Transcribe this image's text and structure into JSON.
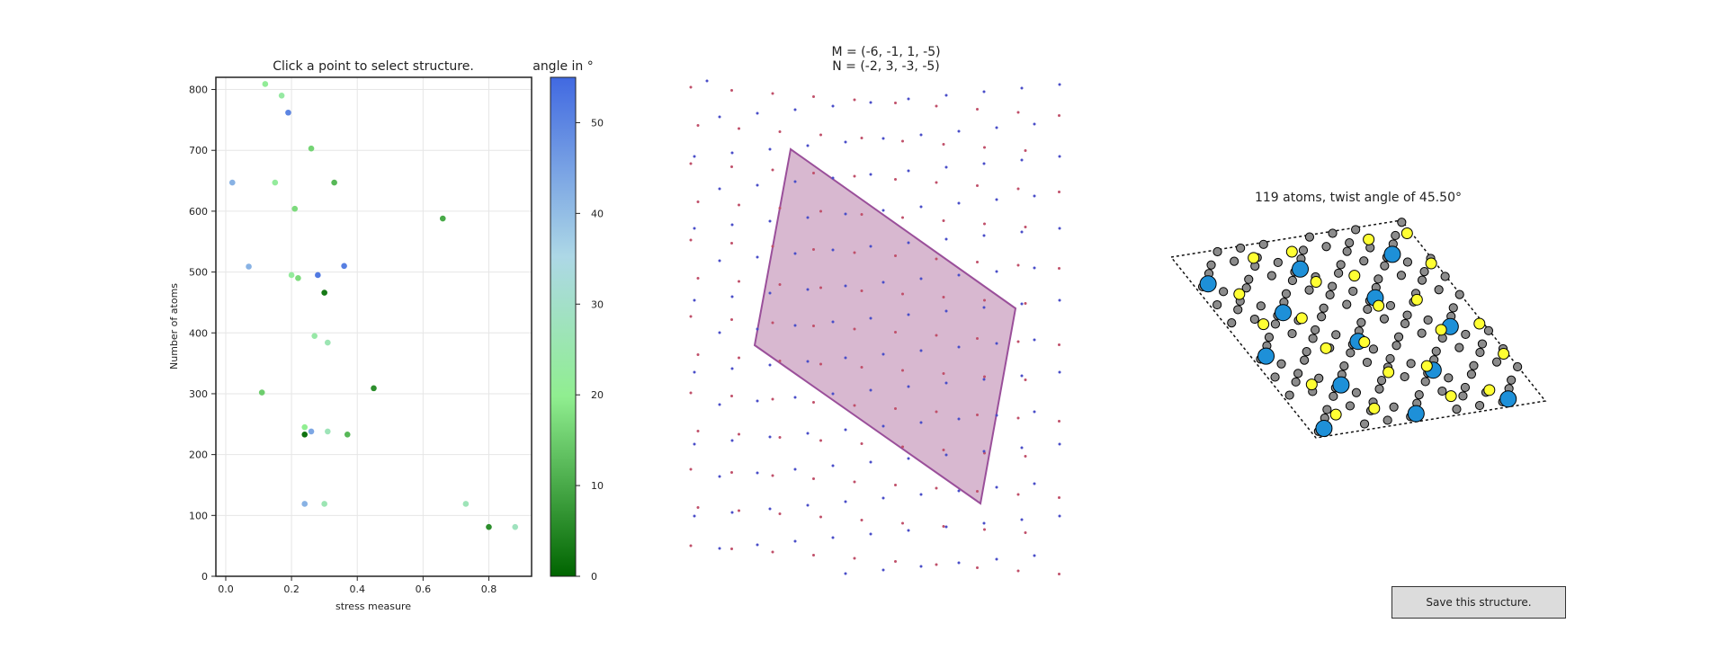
{
  "chart_data": [
    {
      "type": "scatter",
      "title": "Click a point to select structure.",
      "xlabel": "stress measure",
      "ylabel": "Number of atoms",
      "xlim": [
        -0.03,
        0.93
      ],
      "ylim": [
        0,
        820
      ],
      "xticks": [
        "0.0",
        "0.2",
        "0.4",
        "0.6",
        "0.8"
      ],
      "yticks": [
        "0",
        "100",
        "200",
        "300",
        "400",
        "500",
        "600",
        "700",
        "800"
      ],
      "grid": true,
      "colorbar": {
        "label": "angle in °",
        "range": [
          0,
          55
        ],
        "ticks": [
          "0",
          "10",
          "20",
          "30",
          "40",
          "50"
        ],
        "colors": [
          "#006400",
          "#90ee90",
          "#add8e6",
          "#4169e1"
        ]
      },
      "points": [
        {
          "x": 0.12,
          "y": 809,
          "angle": 21
        },
        {
          "x": 0.17,
          "y": 790,
          "angle": 23
        },
        {
          "x": 0.19,
          "y": 762,
          "angle": 50
        },
        {
          "x": 0.26,
          "y": 703,
          "angle": 16
        },
        {
          "x": 0.02,
          "y": 647,
          "angle": 42
        },
        {
          "x": 0.15,
          "y": 647,
          "angle": 22
        },
        {
          "x": 0.33,
          "y": 647,
          "angle": 12
        },
        {
          "x": 0.21,
          "y": 604,
          "angle": 17
        },
        {
          "x": 0.66,
          "y": 588,
          "angle": 10
        },
        {
          "x": 0.07,
          "y": 509,
          "angle": 42
        },
        {
          "x": 0.36,
          "y": 510,
          "angle": 51
        },
        {
          "x": 0.2,
          "y": 495,
          "angle": 22
        },
        {
          "x": 0.28,
          "y": 495,
          "angle": 52
        },
        {
          "x": 0.22,
          "y": 490,
          "angle": 17
        },
        {
          "x": 0.3,
          "y": 466,
          "angle": 3
        },
        {
          "x": 0.27,
          "y": 395,
          "angle": 24
        },
        {
          "x": 0.31,
          "y": 384,
          "angle": 26
        },
        {
          "x": 0.11,
          "y": 302,
          "angle": 15
        },
        {
          "x": 0.45,
          "y": 309,
          "angle": 6
        },
        {
          "x": 0.24,
          "y": 245,
          "angle": 20
        },
        {
          "x": 0.26,
          "y": 238,
          "angle": 44
        },
        {
          "x": 0.31,
          "y": 238,
          "angle": 27
        },
        {
          "x": 0.24,
          "y": 233,
          "angle": 2
        },
        {
          "x": 0.37,
          "y": 233,
          "angle": 12
        },
        {
          "x": 0.24,
          "y": 119,
          "angle": 42
        },
        {
          "x": 0.3,
          "y": 119,
          "angle": 26
        },
        {
          "x": 0.73,
          "y": 119,
          "angle": 27
        },
        {
          "x": 0.8,
          "y": 81,
          "angle": 6
        },
        {
          "x": 0.88,
          "y": 81,
          "angle": 28
        }
      ]
    },
    {
      "type": "scatter",
      "title_lines": [
        "M = (-6, -1,  1, -5)",
        "N = (-2,  3, -3, -5)"
      ],
      "cell_color": "#d8b8d0",
      "cell_edge_color": "#9a4f9a",
      "dot_colors": [
        "#c0506a",
        "#4a4ec8"
      ]
    },
    {
      "type": "scatter",
      "title": "119 atoms, twist angle of 45.50°",
      "legend_colors": {
        "blue": "#1e90d8",
        "yellow": "#ffff33",
        "gray": "#8c8c8c"
      }
    }
  ],
  "save_button": {
    "label": "Save this structure."
  }
}
